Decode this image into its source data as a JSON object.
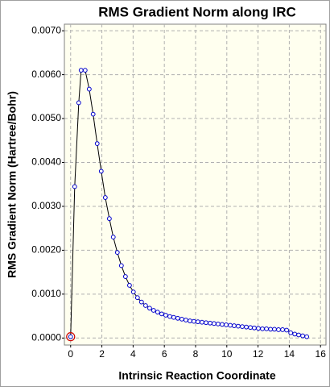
{
  "chart_data": {
    "type": "line",
    "title": "RMS Gradient Norm along IRC",
    "x_label": "Intrinsic Reaction Coordinate",
    "y_label": "RMS Gradient Norm (Hartree/Bohr)",
    "x": [
      0.0,
      0.26,
      0.52,
      0.67,
      0.93,
      1.19,
      1.44,
      1.7,
      1.96,
      2.22,
      2.48,
      2.73,
      2.99,
      3.25,
      3.51,
      3.77,
      4.02,
      4.28,
      4.54,
      4.8,
      5.06,
      5.31,
      5.57,
      5.83,
      6.09,
      6.35,
      6.6,
      6.86,
      7.12,
      7.38,
      7.64,
      7.89,
      8.15,
      8.41,
      8.67,
      8.93,
      9.18,
      9.44,
      9.7,
      9.96,
      10.22,
      10.47,
      10.73,
      10.99,
      11.25,
      11.51,
      11.76,
      12.02,
      12.28,
      12.54,
      12.8,
      13.05,
      13.31,
      13.57,
      13.83,
      14.09,
      14.35,
      14.6,
      14.86,
      15.12
    ],
    "series": [
      {
        "color": "#0000cc",
        "line_color": "#000000",
        "values": [
          3e-05,
          0.00345,
          0.00536,
          0.0061,
          0.0061,
          0.00567,
          0.0051,
          0.00443,
          0.0038,
          0.0032,
          0.00272,
          0.0023,
          0.00195,
          0.00165,
          0.0014,
          0.0012,
          0.00105,
          0.00092,
          0.00082,
          0.00074,
          0.00068,
          0.00063,
          0.00059,
          0.00055,
          0.00052,
          0.00049,
          0.00047,
          0.00045,
          0.00043,
          0.00041,
          0.00039,
          0.00038,
          0.00037,
          0.00036,
          0.00035,
          0.00034,
          0.00033,
          0.00032,
          0.00031,
          0.0003,
          0.00029,
          0.00028,
          0.00027,
          0.00026,
          0.00025,
          0.00024,
          0.00023,
          0.00022,
          0.00021,
          0.00021,
          0.0002,
          0.0002,
          0.00019,
          0.00019,
          0.00018,
          0.00012,
          9e-05,
          7e-05,
          5e-05,
          3e-05
        ]
      }
    ],
    "highlight_index": 0,
    "highlight_color": "#cc0000",
    "xlim": [
      -0.4,
      16.35
    ],
    "ylim": [
      -0.00016,
      0.00715
    ],
    "xticks": [
      0,
      2,
      4,
      6,
      8,
      10,
      12,
      14,
      16
    ],
    "yticks": [
      {
        "value": 0,
        "label": "0.0000"
      },
      {
        "value": 0.001,
        "label": "0.0010"
      },
      {
        "value": 0.002,
        "label": "0.0020"
      },
      {
        "value": 0.003,
        "label": "0.0030"
      },
      {
        "value": 0.004,
        "label": "0.0040"
      },
      {
        "value": 0.005,
        "label": "0.0050"
      },
      {
        "value": 0.006,
        "label": "0.0060"
      },
      {
        "value": 0.007,
        "label": "0.0070"
      }
    ],
    "grid": true,
    "plot_background": "#ffffef"
  }
}
